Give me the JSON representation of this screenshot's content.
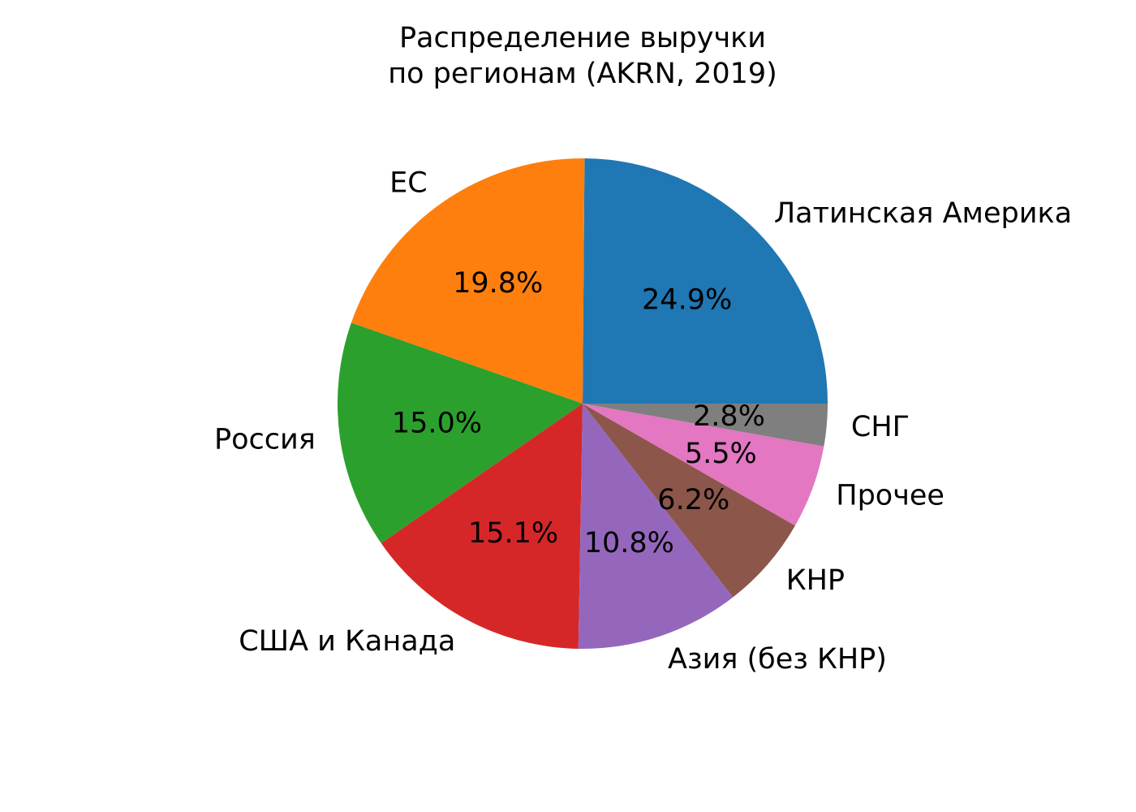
{
  "chart_data": {
    "type": "pie",
    "title_lines": [
      "Распределение выручки",
      "по регионам (AKRN, 2019)"
    ],
    "start_angle_deg": 0,
    "direction": "counterclockwise",
    "slices": [
      {
        "label": "Латинская Америка",
        "value": 24.9,
        "pct_label": "24.9%",
        "color": "#1f77b4"
      },
      {
        "label": "ЕС",
        "value": 19.8,
        "pct_label": "19.8%",
        "color": "#ff7f0e"
      },
      {
        "label": "Россия",
        "value": 15.0,
        "pct_label": "15.0%",
        "color": "#2ca02c"
      },
      {
        "label": "США и Канада",
        "value": 15.1,
        "pct_label": "15.1%",
        "color": "#d62728"
      },
      {
        "label": "Азия (без КНР)",
        "value": 10.8,
        "pct_label": "10.8%",
        "color": "#9467bd"
      },
      {
        "label": "КНР",
        "value": 6.2,
        "pct_label": "6.2%",
        "color": "#8c564b"
      },
      {
        "label": "Прочее",
        "value": 5.5,
        "pct_label": "5.5%",
        "color": "#e377c2"
      },
      {
        "label": "СНГ",
        "value": 2.8,
        "pct_label": "2.8%",
        "color": "#7f7f7f"
      }
    ]
  }
}
